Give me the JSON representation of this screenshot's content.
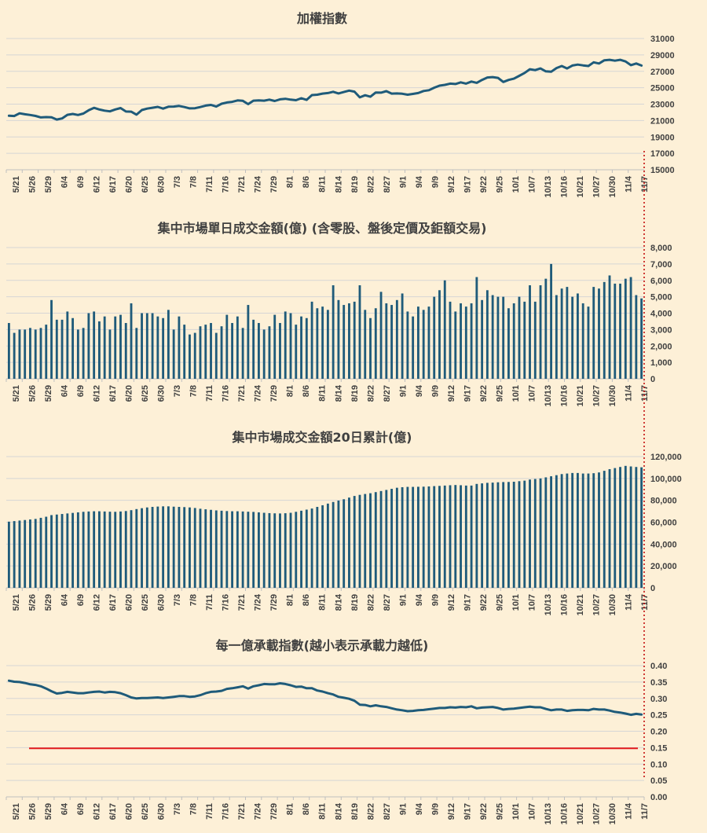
{
  "theme": {
    "background": "#fdf0d7",
    "series_color": "#1f5b7a",
    "grid_color": "#d6d6d6",
    "reference_color": "#e31a1c",
    "marker_color": "#c00000"
  },
  "chart_data": [
    {
      "type": "line",
      "title": "加權指數",
      "x_ticks": [
        "5/21",
        "5/26",
        "5/29",
        "6/4",
        "6/9",
        "6/12",
        "6/17",
        "6/20",
        "6/25",
        "6/30",
        "7/3",
        "7/8",
        "7/11",
        "7/16",
        "7/21",
        "7/24",
        "7/29",
        "8/1",
        "8/6",
        "8/11",
        "8/14",
        "8/19",
        "8/22",
        "8/27",
        "9/1",
        "9/4",
        "9/9",
        "9/12",
        "9/17",
        "9/22",
        "9/25",
        "10/1",
        "10/7",
        "10/13",
        "10/16",
        "10/21",
        "10/27",
        "10/30",
        "11/4",
        "11/7"
      ],
      "y_ticks": [
        "31000",
        "29000",
        "27000",
        "25000",
        "23000",
        "21000",
        "19000",
        "17000",
        "15000"
      ],
      "ylim": [
        15000,
        31000
      ],
      "grid": true,
      "series": [
        {
          "values": [
            21580,
            21550,
            21880,
            21760,
            21680,
            21560,
            21380,
            21420,
            21400,
            21120,
            21260,
            21700,
            21800,
            21680,
            21850,
            22250,
            22550,
            22350,
            22200,
            22120,
            22350,
            22520,
            22100,
            22080,
            21720,
            22280,
            22450,
            22560,
            22660,
            22450,
            22680,
            22700,
            22780,
            22650,
            22480,
            22500,
            22650,
            22820,
            22900,
            22700,
            23050,
            23200,
            23280,
            23450,
            23400,
            23000,
            23420,
            23450,
            23420,
            23550,
            23380,
            23580,
            23650,
            23550,
            23480,
            23720,
            23520,
            24100,
            24150,
            24280,
            24350,
            24500,
            24300,
            24480,
            24650,
            24520,
            23820,
            24080,
            23900,
            24420,
            24400,
            24580,
            24280,
            24300,
            24260,
            24150,
            24250,
            24350,
            24600,
            24700,
            25000,
            25250,
            25350,
            25500,
            25450,
            25650,
            25500,
            25750,
            25600,
            25950,
            26250,
            26300,
            26200,
            25700,
            25950,
            26100,
            26450,
            26800,
            27250,
            27150,
            27350,
            27000,
            26950,
            27400,
            27650,
            27350,
            27700,
            27820,
            27720,
            27650,
            28100,
            27950,
            28350,
            28400,
            28300,
            28400,
            28200,
            27750,
            27950,
            27700
          ]
        }
      ]
    },
    {
      "type": "bar",
      "title": "集中市場單日成交金額(億) (含零股、盤後定價及鉅額交易)",
      "x_ticks": [
        "5/21",
        "5/26",
        "5/29",
        "6/4",
        "6/9",
        "6/12",
        "6/17",
        "6/20",
        "6/25",
        "6/30",
        "7/3",
        "7/8",
        "7/11",
        "7/16",
        "7/21",
        "7/24",
        "7/29",
        "8/1",
        "8/6",
        "8/11",
        "8/14",
        "8/19",
        "8/22",
        "8/27",
        "9/1",
        "9/4",
        "9/9",
        "9/12",
        "9/17",
        "9/22",
        "9/25",
        "10/1",
        "10/7",
        "10/13",
        "10/16",
        "10/21",
        "10/27",
        "10/30",
        "11/4",
        "11/7"
      ],
      "y_ticks": [
        "8,000",
        "7,000",
        "6,000",
        "5,000",
        "4,000",
        "3,000",
        "2,000",
        "1,000",
        "0"
      ],
      "ylim": [
        0,
        8000
      ],
      "grid": true,
      "series": [
        {
          "values": [
            3400,
            2800,
            3000,
            3000,
            3100,
            3000,
            3100,
            3300,
            4800,
            3600,
            3600,
            4100,
            3700,
            3000,
            3100,
            4000,
            4100,
            3500,
            3800,
            3000,
            3800,
            3900,
            3400,
            4600,
            3100,
            4000,
            4000,
            4000,
            3800,
            3700,
            4200,
            3000,
            3800,
            3300,
            2700,
            2800,
            3200,
            3300,
            3400,
            2800,
            3200,
            3900,
            3400,
            3800,
            3100,
            4500,
            3600,
            3400,
            3000,
            3200,
            3900,
            3400,
            4100,
            4000,
            3300,
            3800,
            3700,
            4700,
            4300,
            4400,
            4200,
            5700,
            4800,
            4500,
            4600,
            4700,
            5700,
            4200,
            3700,
            4300,
            5300,
            4600,
            4500,
            4800,
            5200,
            4100,
            3800,
            4400,
            4200,
            4400,
            5000,
            5400,
            6000,
            4700,
            4100,
            4600,
            4400,
            4600,
            6200,
            4800,
            5400,
            5100,
            5000,
            5000,
            4300,
            4600,
            5000,
            4700,
            5700,
            4700,
            5700,
            6100,
            7000,
            5100,
            5500,
            5600,
            5000,
            5200,
            4600,
            4400,
            5600,
            5500,
            5900,
            6300,
            5800,
            5800,
            6100,
            6200,
            5100,
            4900
          ]
        }
      ]
    },
    {
      "type": "bar",
      "title": "集中市場成交金額20日累計(億)",
      "x_ticks": [
        "5/21",
        "5/26",
        "5/29",
        "6/4",
        "6/9",
        "6/12",
        "6/17",
        "6/20",
        "6/25",
        "6/30",
        "7/3",
        "7/8",
        "7/11",
        "7/16",
        "7/21",
        "7/24",
        "7/29",
        "8/1",
        "8/6",
        "8/11",
        "8/14",
        "8/19",
        "8/22",
        "8/27",
        "9/1",
        "9/4",
        "9/9",
        "9/12",
        "9/17",
        "9/22",
        "9/25",
        "10/1",
        "10/7",
        "10/13",
        "10/16",
        "10/21",
        "10/27",
        "10/30",
        "11/4",
        "11/7"
      ],
      "y_ticks": [
        "120,000",
        "100,000",
        "80,000",
        "60,000",
        "40,000",
        "20,000",
        "0"
      ],
      "ylim": [
        0,
        120000
      ],
      "grid": true,
      "series": [
        {
          "values": [
            60500,
            61000,
            61500,
            62000,
            62500,
            63000,
            64000,
            65000,
            66500,
            67000,
            67500,
            68000,
            68500,
            69000,
            69500,
            69800,
            70000,
            70000,
            69800,
            69600,
            69500,
            69800,
            70200,
            71000,
            72000,
            72800,
            73500,
            74000,
            74300,
            74500,
            74500,
            74200,
            74000,
            73800,
            73500,
            73000,
            72300,
            71800,
            71300,
            70800,
            70500,
            70200,
            70000,
            70000,
            69800,
            69600,
            69400,
            69000,
            68600,
            68300,
            68100,
            68000,
            68200,
            68600,
            69500,
            70500,
            71500,
            72500,
            74000,
            75500,
            77000,
            78500,
            79800,
            81000,
            82500,
            84000,
            85000,
            85800,
            86500,
            87500,
            88500,
            89500,
            90500,
            91500,
            92000,
            92300,
            92300,
            92400,
            92500,
            92700,
            93000,
            93200,
            93500,
            93800,
            94000,
            93800,
            93500,
            93500,
            95000,
            95500,
            96000,
            96200,
            96500,
            96700,
            96800,
            97000,
            97500,
            98000,
            99000,
            99500,
            100000,
            101000,
            102000,
            103000,
            104000,
            104500,
            105000,
            105000,
            104500,
            104500,
            104800,
            105500,
            107000,
            108500,
            109500,
            110500,
            111500,
            111000,
            110500,
            110200
          ]
        }
      ]
    },
    {
      "type": "line",
      "title": "每一億承載指數(越小表示承載力越低)",
      "x_ticks": [
        "5/21",
        "5/26",
        "5/29",
        "6/4",
        "6/9",
        "6/12",
        "6/17",
        "6/20",
        "6/25",
        "6/30",
        "7/3",
        "7/8",
        "7/11",
        "7/16",
        "7/21",
        "7/24",
        "7/29",
        "8/1",
        "8/6",
        "8/11",
        "8/14",
        "8/19",
        "8/22",
        "8/27",
        "9/1",
        "9/4",
        "9/9",
        "9/12",
        "9/17",
        "9/22",
        "9/25",
        "10/1",
        "10/7",
        "10/13",
        "10/16",
        "10/21",
        "10/27",
        "10/30",
        "11/4",
        "11/7"
      ],
      "y_ticks": [
        "0.40",
        "0.35",
        "0.30",
        "0.25",
        "0.20",
        "0.15",
        "0.10",
        "0.05",
        "0.00"
      ],
      "ylim": [
        0,
        0.4
      ],
      "grid": true,
      "reference_line": 0.148,
      "series": [
        {
          "values": [
            0.354,
            0.351,
            0.35,
            0.347,
            0.343,
            0.341,
            0.337,
            0.33,
            0.322,
            0.315,
            0.317,
            0.32,
            0.318,
            0.316,
            0.316,
            0.318,
            0.32,
            0.321,
            0.318,
            0.32,
            0.319,
            0.316,
            0.31,
            0.303,
            0.3,
            0.301,
            0.301,
            0.302,
            0.303,
            0.301,
            0.303,
            0.305,
            0.307,
            0.307,
            0.305,
            0.306,
            0.31,
            0.316,
            0.32,
            0.321,
            0.323,
            0.329,
            0.331,
            0.334,
            0.337,
            0.33,
            0.337,
            0.34,
            0.344,
            0.343,
            0.343,
            0.346,
            0.344,
            0.34,
            0.335,
            0.336,
            0.331,
            0.331,
            0.324,
            0.321,
            0.316,
            0.312,
            0.305,
            0.302,
            0.299,
            0.293,
            0.281,
            0.28,
            0.276,
            0.279,
            0.276,
            0.274,
            0.27,
            0.266,
            0.264,
            0.261,
            0.262,
            0.264,
            0.265,
            0.267,
            0.269,
            0.271,
            0.271,
            0.273,
            0.272,
            0.274,
            0.273,
            0.276,
            0.27,
            0.272,
            0.273,
            0.274,
            0.271,
            0.266,
            0.268,
            0.269,
            0.271,
            0.273,
            0.275,
            0.273,
            0.273,
            0.268,
            0.264,
            0.266,
            0.266,
            0.262,
            0.264,
            0.265,
            0.265,
            0.264,
            0.268,
            0.266,
            0.266,
            0.263,
            0.259,
            0.257,
            0.254,
            0.25,
            0.253,
            0.251
          ]
        }
      ]
    }
  ]
}
